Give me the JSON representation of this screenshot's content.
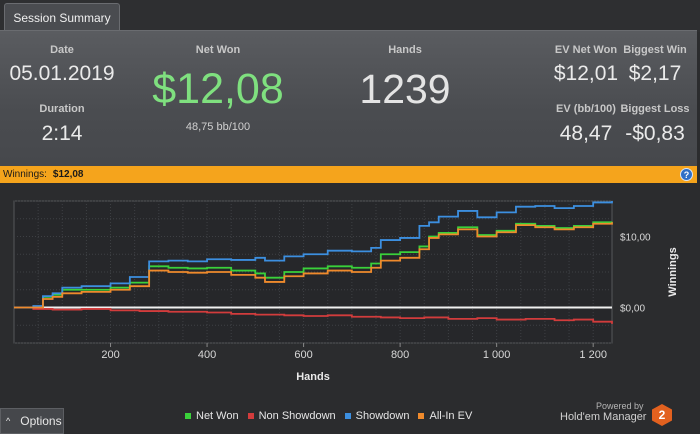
{
  "tab": {
    "label": "Session Summary"
  },
  "summary": {
    "date_label": "Date",
    "date_value": "05.01.2019",
    "duration_label": "Duration",
    "duration_value": "2:14",
    "net_won_label": "Net Won",
    "net_won_value": "$12,08",
    "bb_per_100": "48,75 bb/100",
    "hands_label": "Hands",
    "hands_value": "1239",
    "ev_net_won_label": "EV Net Won",
    "ev_net_won_value": "$12,01",
    "biggest_win_label": "Biggest Win",
    "biggest_win_value": "$2,17",
    "ev_bb_label": "EV (bb/100)",
    "ev_bb_value": "48,47",
    "biggest_loss_label": "Biggest Loss",
    "biggest_loss_value": "-$0,83"
  },
  "winnings_bar": {
    "label": "Winnings:",
    "value": "$12,08",
    "help": "?"
  },
  "colors": {
    "net_won": "#3ad13a",
    "non_showdown": "#d23c3c",
    "showdown": "#3c8fe0",
    "all_in_ev": "#ef8a2c",
    "net_won_text": "#7fe07f",
    "accent_bar": "#f5a41c"
  },
  "chart_data": {
    "type": "line",
    "xlabel": "Hands",
    "ylabel": "Winnings",
    "xlim": [
      0,
      1239
    ],
    "ylim": [
      -5,
      15
    ],
    "x_ticks": [
      200,
      400,
      600,
      800,
      1000,
      1200
    ],
    "x_tick_labels": [
      "200",
      "400",
      "600",
      "800",
      "1 000",
      "1 200"
    ],
    "y_ticks": [
      0,
      10
    ],
    "y_tick_labels": [
      "$0,00",
      "$10,00"
    ],
    "grid": true,
    "series": [
      {
        "name": "Net Won",
        "color": "#3ad13a",
        "x": [
          0,
          40,
          60,
          80,
          100,
          140,
          200,
          240,
          280,
          320,
          360,
          400,
          450,
          500,
          520,
          560,
          600,
          650,
          700,
          740,
          760,
          800,
          840,
          860,
          880,
          920,
          960,
          1000,
          1040,
          1080,
          1120,
          1160,
          1200,
          1239
        ],
        "y": [
          0,
          0,
          1.5,
          1.8,
          2.5,
          2.5,
          2.8,
          3.5,
          5.8,
          5.6,
          5.5,
          5.6,
          5.2,
          4.8,
          4.2,
          5.0,
          5.5,
          5.8,
          5.6,
          6.2,
          7.5,
          7.8,
          8.6,
          10.0,
          10.5,
          11.3,
          10.2,
          10.8,
          11.8,
          11.5,
          11.2,
          11.5,
          12.0,
          12.08
        ]
      },
      {
        "name": "Non Showdown",
        "color": "#d23c3c",
        "x": [
          0,
          40,
          80,
          140,
          200,
          260,
          320,
          400,
          450,
          500,
          560,
          600,
          650,
          700,
          760,
          800,
          850,
          900,
          960,
          1000,
          1060,
          1120,
          1160,
          1200,
          1239
        ],
        "y": [
          0,
          -0.2,
          -0.3,
          -0.2,
          -0.4,
          -0.5,
          -0.6,
          -0.7,
          -0.9,
          -1.0,
          -1.1,
          -1.2,
          -1.1,
          -1.3,
          -1.4,
          -1.5,
          -1.4,
          -1.6,
          -1.5,
          -1.7,
          -1.6,
          -1.8,
          -1.7,
          -2.0,
          -2.3
        ]
      },
      {
        "name": "Showdown",
        "color": "#3c8fe0",
        "x": [
          0,
          40,
          60,
          80,
          100,
          140,
          200,
          240,
          280,
          320,
          360,
          400,
          450,
          500,
          520,
          560,
          600,
          650,
          700,
          740,
          760,
          800,
          840,
          860,
          880,
          920,
          960,
          1000,
          1040,
          1080,
          1120,
          1160,
          1200,
          1239
        ],
        "y": [
          0,
          0.2,
          1.6,
          2.0,
          2.8,
          3.0,
          3.4,
          4.3,
          6.5,
          6.6,
          6.5,
          6.8,
          6.7,
          7.0,
          6.6,
          7.2,
          7.5,
          8.0,
          7.9,
          8.4,
          9.5,
          9.8,
          11.5,
          12.0,
          12.8,
          13.6,
          12.7,
          13.4,
          14.2,
          14.3,
          14.0,
          14.3,
          14.8,
          15.0
        ]
      },
      {
        "name": "All-In EV",
        "color": "#ef8a2c",
        "x": [
          0,
          40,
          60,
          80,
          100,
          140,
          200,
          240,
          280,
          320,
          360,
          400,
          450,
          500,
          520,
          560,
          600,
          650,
          700,
          740,
          760,
          800,
          840,
          860,
          880,
          920,
          960,
          1000,
          1040,
          1080,
          1120,
          1160,
          1200,
          1239
        ],
        "y": [
          0,
          0,
          1.2,
          1.5,
          2.0,
          2.2,
          2.5,
          3.0,
          5.2,
          5.0,
          4.9,
          5.0,
          4.6,
          4.2,
          3.6,
          4.4,
          4.8,
          5.2,
          5.0,
          5.6,
          6.6,
          7.0,
          8.2,
          9.8,
          10.3,
          11.0,
          10.0,
          10.6,
          11.6,
          11.3,
          11.0,
          11.3,
          11.8,
          12.01
        ]
      }
    ]
  },
  "legend": {
    "items": [
      {
        "label": "Net Won",
        "color": "#3ad13a"
      },
      {
        "label": "Non Showdown",
        "color": "#d23c3c"
      },
      {
        "label": "Showdown",
        "color": "#3c8fe0"
      },
      {
        "label": "All-In EV",
        "color": "#ef8a2c"
      }
    ]
  },
  "options_button": {
    "label": "Options",
    "caret": "^"
  },
  "branding": {
    "powered_by": "Powered by",
    "product": "Hold'em Manager",
    "logo_text": "2"
  }
}
